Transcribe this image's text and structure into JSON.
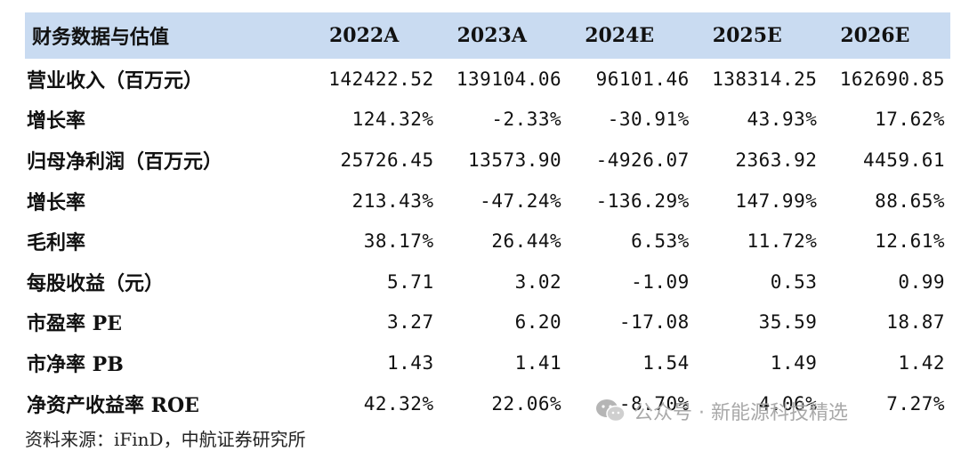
{
  "table": {
    "headers": [
      "财务数据与估值",
      "2022A",
      "2023A",
      "2024E",
      "2025E",
      "2026E"
    ],
    "rows": [
      {
        "label": "营业收入（百万元）",
        "values": [
          "142422.52",
          "139104.06",
          "96101.46",
          "138314.25",
          "162690.85"
        ]
      },
      {
        "label": "增长率",
        "values": [
          "124.32%",
          "-2.33%",
          "-30.91%",
          "43.93%",
          "17.62%"
        ]
      },
      {
        "label": "归母净利润（百万元）",
        "values": [
          "25726.45",
          "13573.90",
          "-4926.07",
          "2363.92",
          "4459.61"
        ]
      },
      {
        "label": "增长率",
        "values": [
          "213.43%",
          "-47.24%",
          "-136.29%",
          "147.99%",
          "88.65%"
        ]
      },
      {
        "label": "毛利率",
        "values": [
          "38.17%",
          "26.44%",
          "6.53%",
          "11.72%",
          "12.61%"
        ]
      },
      {
        "label": "每股收益（元）",
        "values": [
          "5.71",
          "3.02",
          "-1.09",
          "0.53",
          "0.99"
        ]
      },
      {
        "label": "市盈率 PE",
        "values": [
          "3.27",
          "6.20",
          "-17.08",
          "35.59",
          "18.87"
        ]
      },
      {
        "label": "市净率 PB",
        "values": [
          "1.43",
          "1.41",
          "1.54",
          "1.49",
          "1.42"
        ]
      },
      {
        "label": "净资产收益率 ROE",
        "values": [
          "42.32%",
          "22.06%",
          "-8.70%",
          "4.06%",
          "7.27%"
        ]
      }
    ]
  },
  "source": "资料来源：iFinD，中航证券研究所",
  "watermark": {
    "text": "公众号 · 新能源科技精选",
    "icon": "wechat-icon"
  },
  "colors": {
    "header_bg": "#c9dbf1",
    "watermark": "#a9a9a9"
  }
}
